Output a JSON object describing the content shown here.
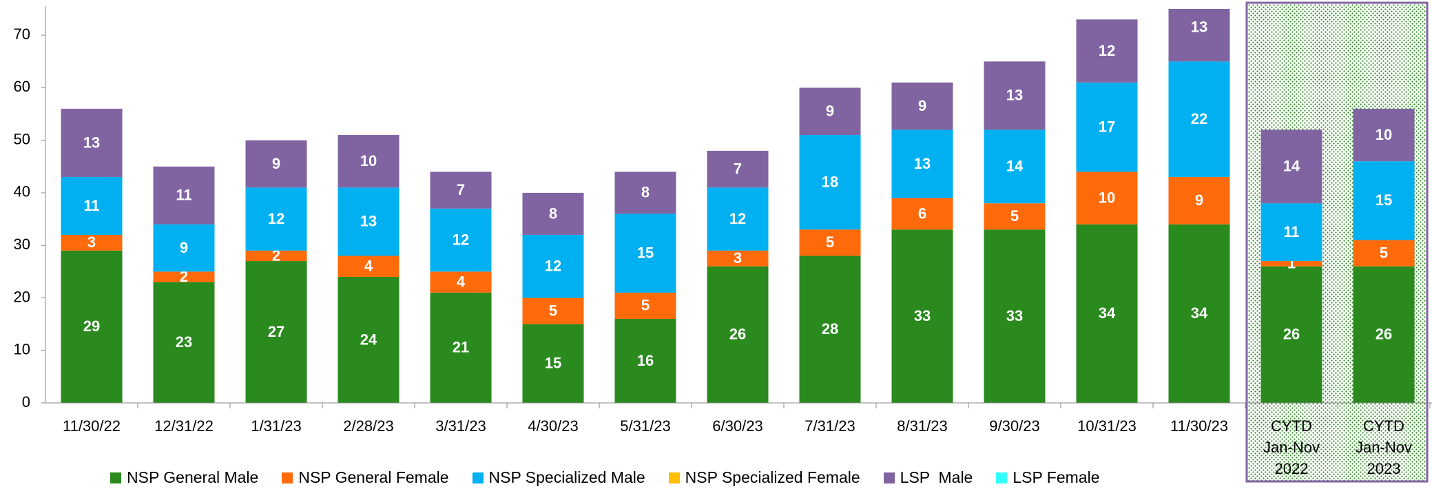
{
  "chart_data": {
    "type": "stacked-bar",
    "categories": [
      "11/30/22",
      "12/31/22",
      "1/31/23",
      "2/28/23",
      "3/31/23",
      "4/30/23",
      "5/31/23",
      "6/30/23",
      "7/31/23",
      "8/31/23",
      "9/30/23",
      "10/31/23",
      "11/30/23",
      "CYTD Jan-Nov 2022",
      "CYTD Jan-Nov 2023"
    ],
    "series": [
      {
        "name": "NSP General Male",
        "color": "#2a8a1e",
        "values": [
          29,
          23,
          27,
          24,
          21,
          15,
          16,
          26,
          28,
          33,
          33,
          34,
          34,
          26,
          26
        ]
      },
      {
        "name": "NSP General Female",
        "color": "#ff6a0a",
        "values": [
          3,
          2,
          2,
          4,
          4,
          5,
          5,
          3,
          5,
          6,
          5,
          10,
          9,
          1,
          5
        ]
      },
      {
        "name": "NSP Specialized Male",
        "color": "#00b0f0",
        "values": [
          11,
          9,
          12,
          13,
          12,
          12,
          15,
          12,
          18,
          13,
          14,
          17,
          22,
          11,
          15
        ]
      },
      {
        "name": "NSP Specialized Female",
        "color": "#ffc000",
        "values": [
          0,
          0,
          0,
          0,
          0,
          0,
          0,
          0,
          0,
          0,
          0,
          0,
          0,
          0,
          0
        ]
      },
      {
        "name": "LSP  Male",
        "color": "#8064a2",
        "values": [
          13,
          11,
          9,
          10,
          7,
          8,
          8,
          7,
          9,
          9,
          13,
          12,
          13,
          14,
          10
        ]
      },
      {
        "name": "LSP Female",
        "color": "#33ffff",
        "values": [
          0,
          0,
          0,
          0,
          0,
          0,
          0,
          0,
          0,
          0,
          0,
          0,
          0,
          0,
          0
        ]
      }
    ],
    "ylim": [
      0,
      75
    ],
    "yticks": [
      0,
      10,
      20,
      30,
      40,
      50,
      60,
      70
    ]
  }
}
